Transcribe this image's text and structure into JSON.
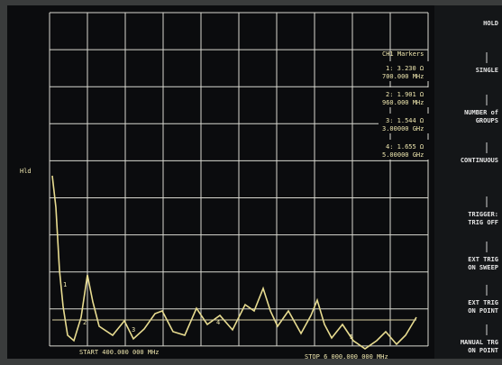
{
  "status": {
    "hold": "Hld"
  },
  "markers": {
    "title": "CH1 Markers",
    "items": [
      {
        "value": "1: 3.230 Ω",
        "freq": "700.000 MHz"
      },
      {
        "value": "2: 1.901 Ω",
        "freq": "960.000 MHz"
      },
      {
        "value": "3: 1.544 Ω",
        "freq": "3.00000 GHz"
      },
      {
        "value": "4: 1.655 Ω",
        "freq": "5.00000 GHz"
      }
    ]
  },
  "axis": {
    "start": "START 400.000 000 MHz",
    "stop": "STOP 6 000.000 000 MHz"
  },
  "softkeys": [
    [
      "HOLD"
    ],
    [
      "SINGLE"
    ],
    [
      "NUMBER of",
      "GROUPS"
    ],
    [
      "CONTINUOUS"
    ],
    [
      "TRIGGER:",
      "TRIG OFF"
    ],
    [
      "EXT TRIG",
      "ON SWEEP"
    ],
    [
      "EXT TRIG",
      "ON POINT"
    ],
    [
      "MANUAL TRG",
      "ON POINT"
    ]
  ]
}
